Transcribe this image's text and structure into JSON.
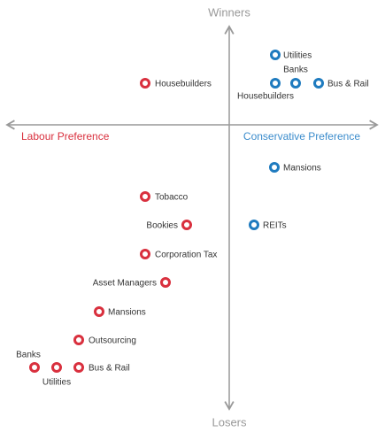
{
  "axes": {
    "top": "Winners",
    "bottom": "Losers",
    "left": "Labour Preference",
    "right": "Conservative Preference",
    "left_color": "#d9303e",
    "right_color": "#3b8ccc"
  },
  "nodes": [
    {
      "label": "Utilities",
      "color": "#1f7bbf"
    },
    {
      "label": "Banks",
      "color": "#1f7bbf"
    },
    {
      "label": "Housebuilders",
      "color": "#1f7bbf"
    },
    {
      "label": "Bus & Rail",
      "color": "#1f7bbf"
    },
    {
      "label": "Mansions",
      "color": "#1f7bbf"
    },
    {
      "label": "REITs",
      "color": "#1f7bbf"
    },
    {
      "label": "Housebuilders",
      "color": "#d9303e"
    },
    {
      "label": "Tobacco",
      "color": "#d9303e"
    },
    {
      "label": "Bookies",
      "color": "#d9303e"
    },
    {
      "label": "Corporation Tax",
      "color": "#d9303e"
    },
    {
      "label": "Asset Managers",
      "color": "#d9303e"
    },
    {
      "label": "Mansions",
      "color": "#d9303e"
    },
    {
      "label": "Outsourcing",
      "color": "#d9303e"
    },
    {
      "label": "Banks",
      "color": "#d9303e"
    },
    {
      "label": "Utilities",
      "color": "#d9303e"
    },
    {
      "label": "Bus & Rail",
      "color": "#d9303e"
    }
  ]
}
